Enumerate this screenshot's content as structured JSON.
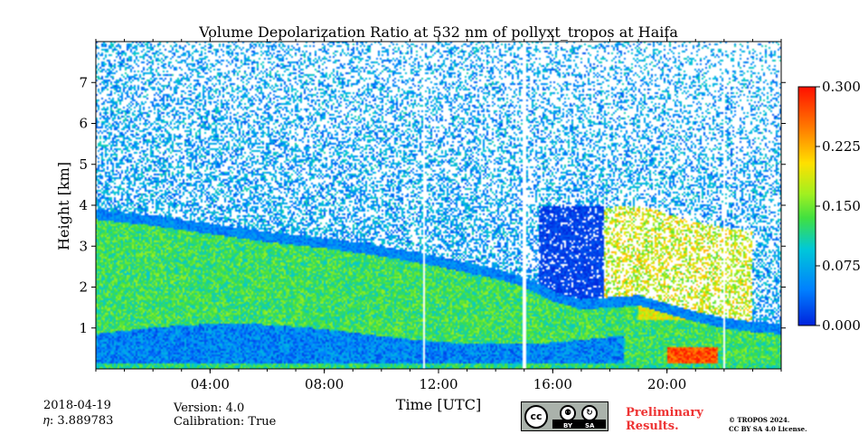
{
  "chart_data": {
    "type": "heatmap",
    "title": "Volume Depolarization Ratio at 532 nm of pollyxt_tropos at Haifa",
    "xlabel": "Time [UTC]",
    "ylabel": "Height [km]",
    "x_range_hours": [
      0,
      24
    ],
    "y_range_km": [
      0,
      8
    ],
    "x_ticks": [
      {
        "value": 4,
        "label": "04:00"
      },
      {
        "value": 8,
        "label": "08:00"
      },
      {
        "value": 12,
        "label": "12:00"
      },
      {
        "value": 16,
        "label": "16:00"
      },
      {
        "value": 20,
        "label": "20:00"
      }
    ],
    "y_ticks": [
      {
        "value": 1,
        "label": "1"
      },
      {
        "value": 2,
        "label": "2"
      },
      {
        "value": 3,
        "label": "3"
      },
      {
        "value": 4,
        "label": "4"
      },
      {
        "value": 5,
        "label": "5"
      },
      {
        "value": 6,
        "label": "6"
      },
      {
        "value": 7,
        "label": "7"
      }
    ],
    "colorbar": {
      "range": [
        0,
        0.3
      ],
      "colormap": "jet",
      "ticks": [
        {
          "value": 0.0,
          "label": "0.000"
        },
        {
          "value": 0.075,
          "label": "0.075"
        },
        {
          "value": 0.15,
          "label": "0.150"
        },
        {
          "value": 0.225,
          "label": "0.225"
        },
        {
          "value": 0.3,
          "label": "0.300"
        }
      ]
    },
    "data_gaps_hours": [
      11.5,
      15.0,
      22.0
    ],
    "boundary_layer_top_km": [
      [
        0,
        3.9
      ],
      [
        2,
        3.75
      ],
      [
        4,
        3.55
      ],
      [
        6,
        3.35
      ],
      [
        8,
        3.2
      ],
      [
        10,
        3.0
      ],
      [
        12,
        2.75
      ],
      [
        14,
        2.45
      ],
      [
        15,
        2.25
      ],
      [
        16,
        1.9
      ],
      [
        17,
        1.7
      ],
      [
        18,
        1.75
      ],
      [
        19,
        1.8
      ],
      [
        20,
        1.6
      ],
      [
        21,
        1.4
      ],
      [
        22,
        1.25
      ],
      [
        23,
        1.15
      ],
      [
        24,
        1.1
      ]
    ],
    "regimes": {
      "residual_layer_depol": 0.13,
      "lower_layer_depol": 0.05,
      "free_troposphere_depol": 0.02,
      "evening_dust_layer_depol": 0.19,
      "near_surface_plume_depol": 0.27
    }
  },
  "info": {
    "date": "2018-04-19",
    "eta": "𝜂: 3.889783",
    "version": "Version: 4.0",
    "calibration": "Calibration: True"
  },
  "badge": {
    "cc": "cc",
    "by": "BY",
    "sa": "SA"
  },
  "prelim": {
    "line1": "Preliminary",
    "line2": "Results."
  },
  "license": {
    "line1": "© TROPOS 2024.",
    "line2": "CC BY SA 4.0 License."
  }
}
